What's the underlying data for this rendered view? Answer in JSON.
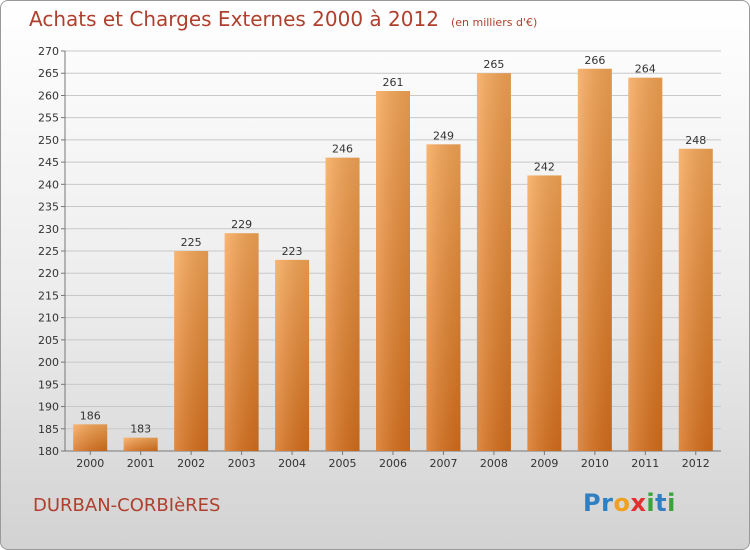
{
  "header": {
    "title": "Achats et Charges Externes 2000 à 2012",
    "subtitle": "(en milliers d'€)"
  },
  "footer": {
    "town": "DURBAN-CORBIèRES"
  },
  "logo": {
    "text": "Proxiti",
    "letters": [
      {
        "ch": "P",
        "color": "#2f7fc1"
      },
      {
        "ch": "r",
        "color": "#2f7fc1"
      },
      {
        "ch": "o",
        "color": "#f0a020"
      },
      {
        "ch": "x",
        "color": "#e03030"
      },
      {
        "ch": "i",
        "color": "#3aa43a"
      },
      {
        "ch": "t",
        "color": "#2f7fc1"
      },
      {
        "ch": "i",
        "color": "#3aa43a"
      }
    ]
  },
  "chart_data": {
    "type": "bar",
    "title": "Achats et Charges Externes 2000 à 2012",
    "subtitle": "(en milliers d'€)",
    "categories": [
      "2000",
      "2001",
      "2002",
      "2003",
      "2004",
      "2005",
      "2006",
      "2007",
      "2008",
      "2009",
      "2010",
      "2011",
      "2012"
    ],
    "values": [
      186,
      183,
      225,
      229,
      223,
      246,
      261,
      249,
      265,
      242,
      266,
      264,
      248
    ],
    "ylim": [
      180,
      270
    ],
    "yticks": [
      180,
      185,
      190,
      195,
      200,
      205,
      210,
      215,
      220,
      225,
      230,
      235,
      240,
      245,
      250,
      255,
      260,
      265,
      270
    ],
    "grid": true,
    "bar_color": "#f0903a",
    "legend": "none"
  }
}
